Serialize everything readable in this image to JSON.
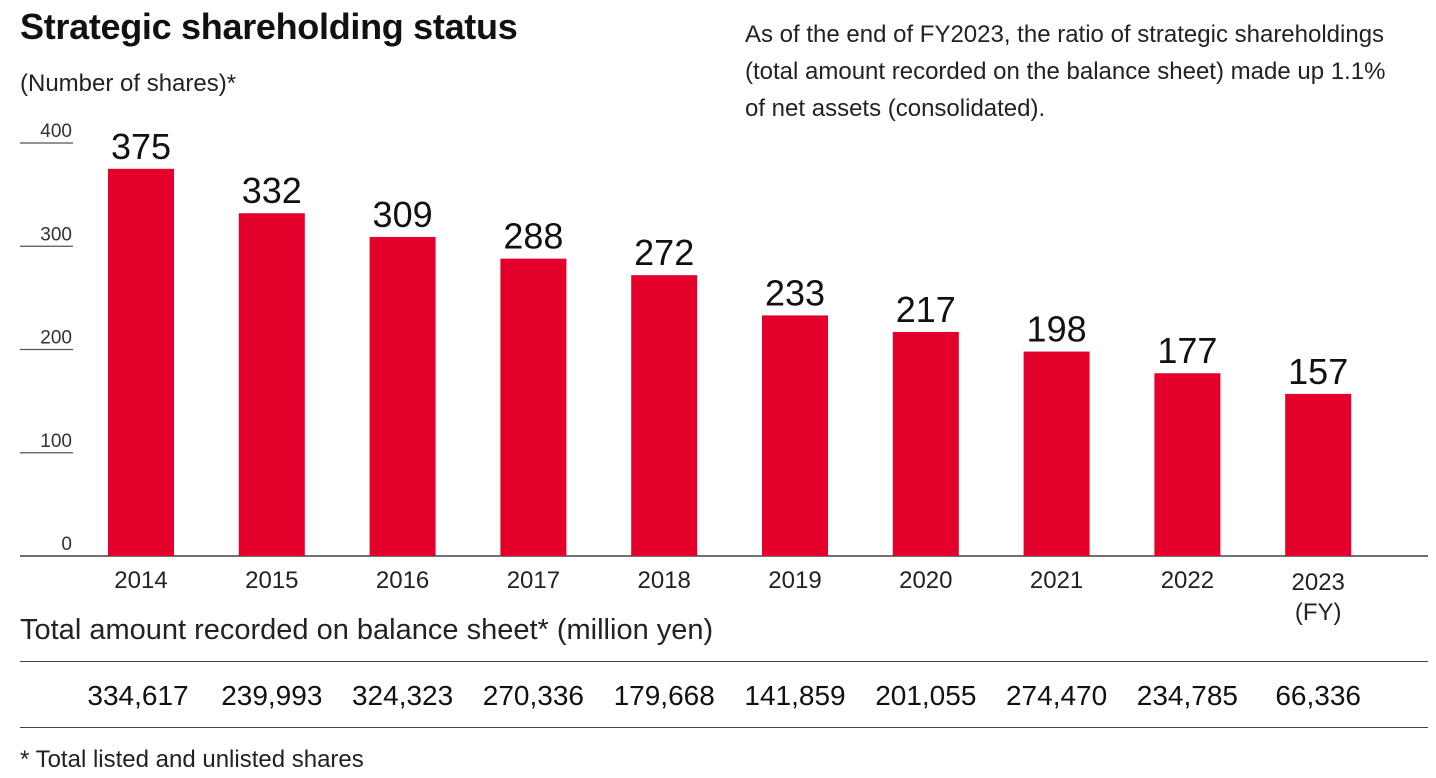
{
  "chart_data": {
    "type": "bar",
    "title": "Strategic shareholding status",
    "ylabel": "(Number of shares)*",
    "xlabel": "",
    "categories": [
      "2014",
      "2015",
      "2016",
      "2017",
      "2018",
      "2019",
      "2020",
      "2021",
      "2022",
      "2023"
    ],
    "last_category_suffix": "(FY)",
    "values": [
      375,
      332,
      309,
      288,
      272,
      233,
      217,
      198,
      177,
      157
    ],
    "ylim": [
      0,
      400
    ],
    "yticks": [
      0,
      100,
      200,
      300,
      400
    ],
    "bar_color": "#e4002b",
    "annotation": "As of the end of FY2023, the ratio of strategic shareholdings (total amount recorded on the balance sheet) made up 1.1% of net assets (consolidated)."
  },
  "totals": {
    "heading": "Total amount recorded on balance sheet* (million yen)",
    "values": [
      "334,617",
      "239,993",
      "324,323",
      "270,336",
      "179,668",
      "141,859",
      "201,055",
      "274,470",
      "234,785",
      "66,336"
    ]
  },
  "footnote": "* Total listed and unlisted shares"
}
